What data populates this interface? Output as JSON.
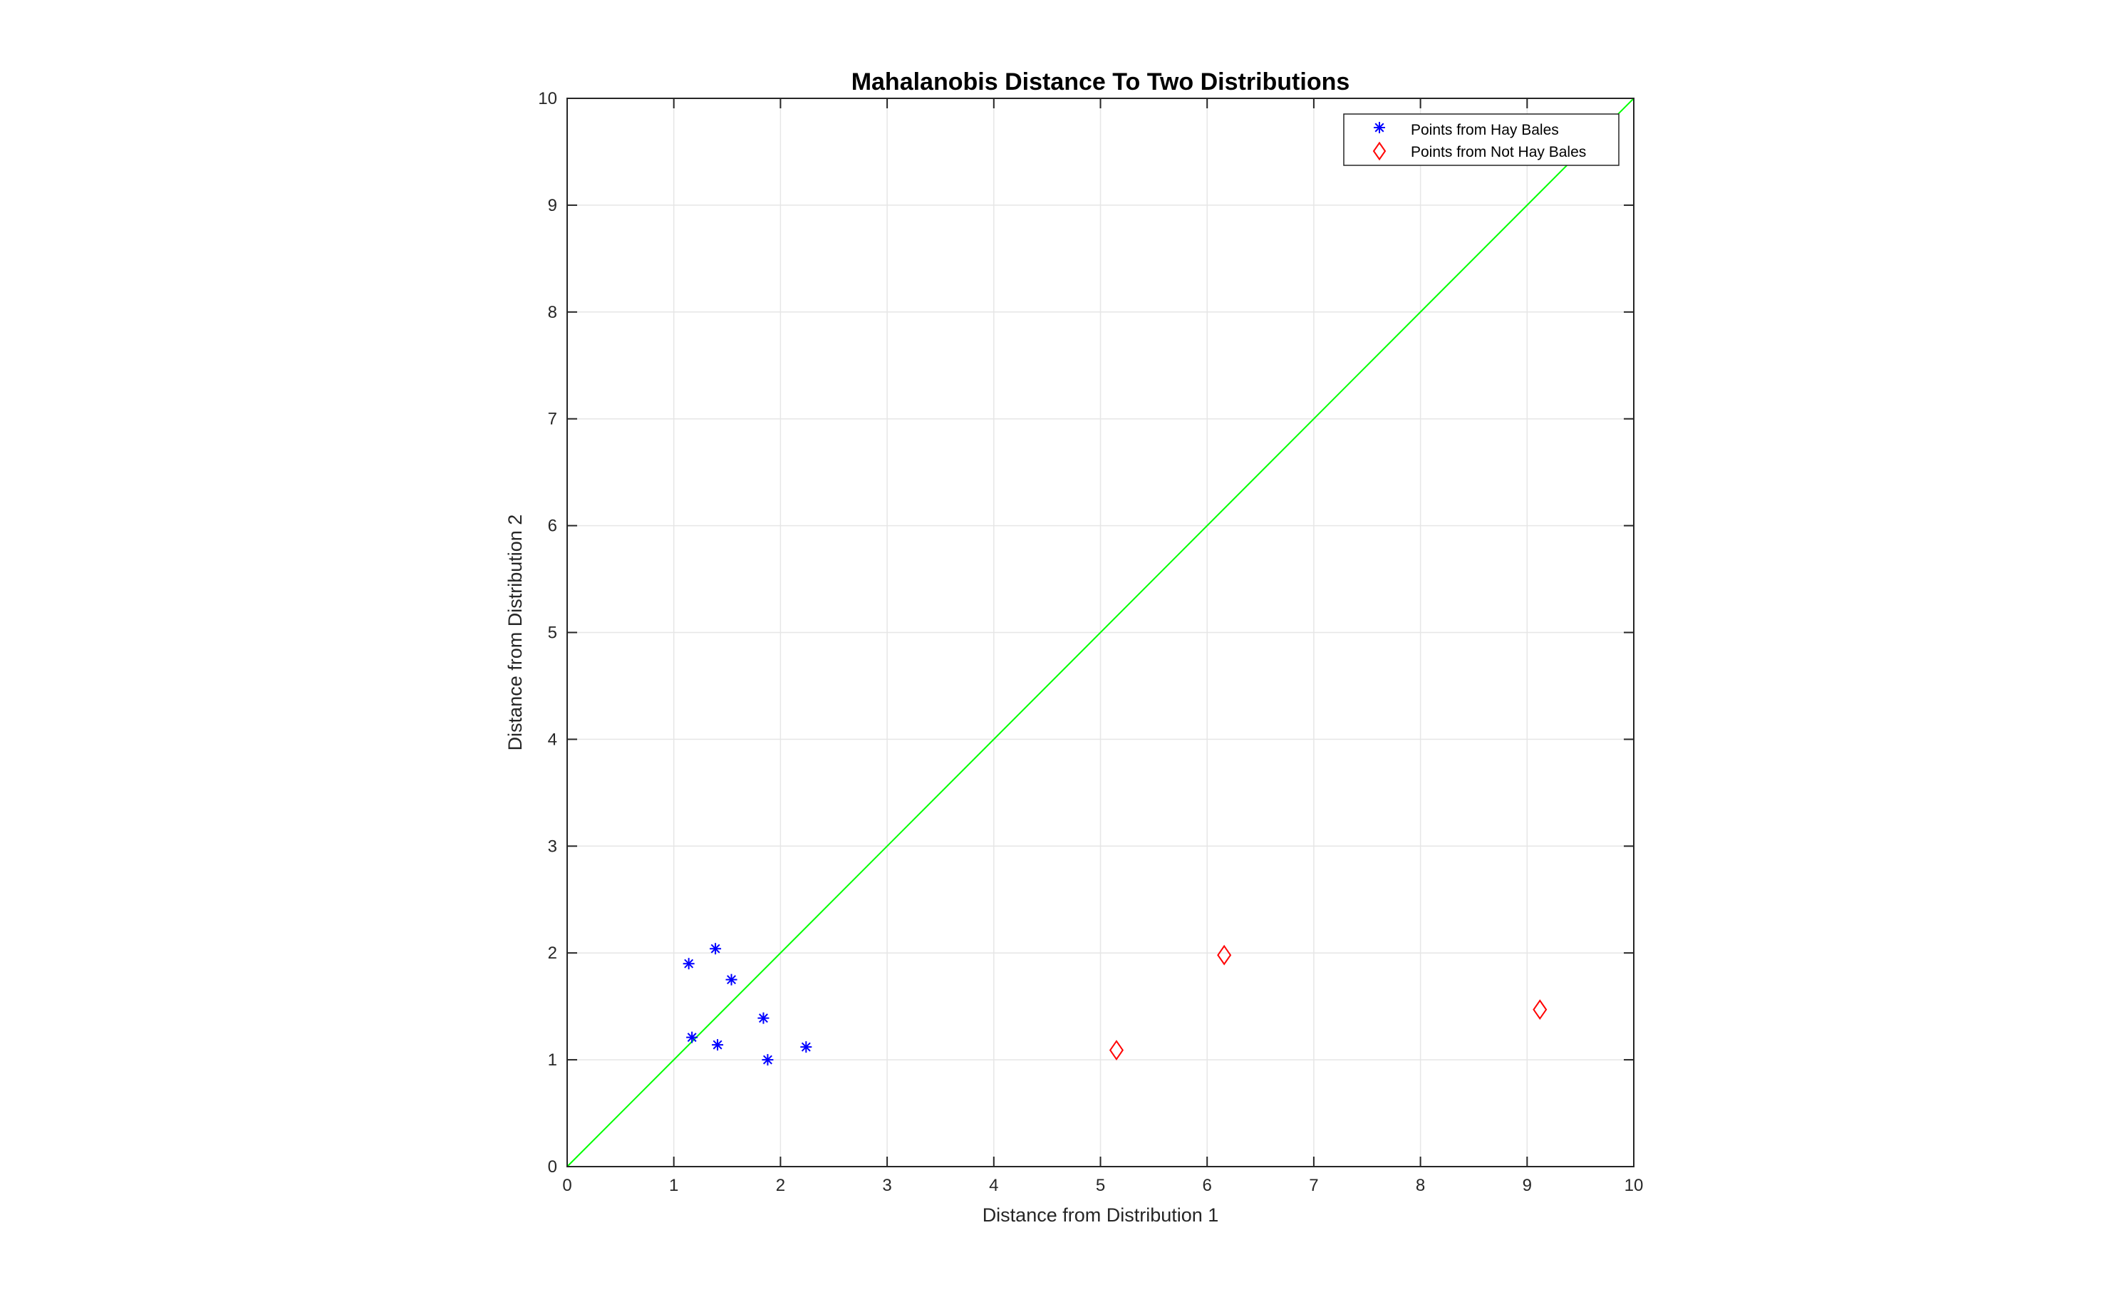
{
  "chart_data": {
    "type": "scatter",
    "title": "Mahalanobis Distance To Two Distributions",
    "xlabel": "Distance from Distribution 1",
    "ylabel": "Distance from Distribution 2",
    "xlim": [
      0,
      10
    ],
    "ylim": [
      0,
      10
    ],
    "xticks": [
      "0",
      "1",
      "2",
      "3",
      "4",
      "5",
      "6",
      "7",
      "8",
      "9",
      "10"
    ],
    "yticks": [
      "0",
      "1",
      "2",
      "3",
      "4",
      "5",
      "6",
      "7",
      "8",
      "9",
      "10"
    ],
    "grid": true,
    "legend_position": "top-right",
    "series": [
      {
        "name": "Points from Hay Bales",
        "marker": "asterisk",
        "color": "#0000ff",
        "points": [
          {
            "x": 1.14,
            "y": 1.9
          },
          {
            "x": 1.39,
            "y": 2.04
          },
          {
            "x": 1.54,
            "y": 1.75
          },
          {
            "x": 1.17,
            "y": 1.21
          },
          {
            "x": 1.41,
            "y": 1.14
          },
          {
            "x": 1.84,
            "y": 1.39
          },
          {
            "x": 1.88,
            "y": 1.0
          },
          {
            "x": 2.24,
            "y": 1.12
          }
        ]
      },
      {
        "name": "Points from Not Hay Bales",
        "marker": "diamond",
        "color": "#ff0000",
        "points": [
          {
            "x": 5.15,
            "y": 1.09
          },
          {
            "x": 6.16,
            "y": 1.98
          },
          {
            "x": 9.12,
            "y": 1.47
          }
        ]
      }
    ],
    "reference_line": {
      "color": "#00ff00",
      "from": [
        0,
        0
      ],
      "to": [
        10,
        10
      ]
    }
  }
}
